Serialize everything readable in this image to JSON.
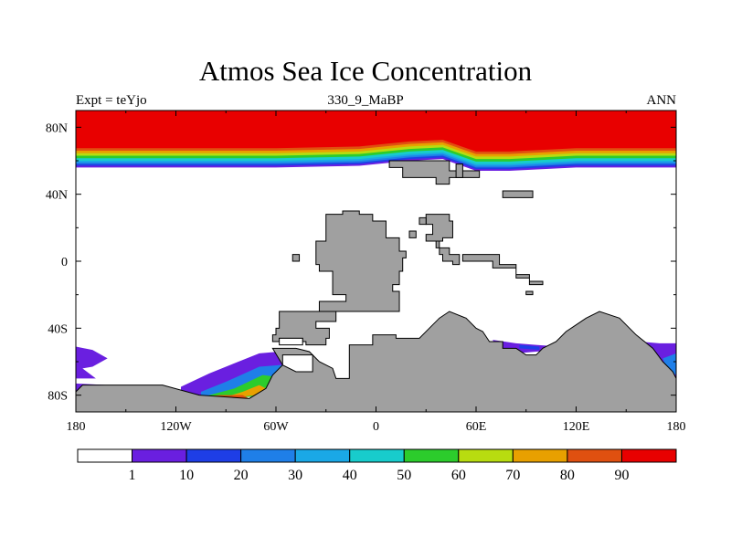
{
  "chart_data": {
    "type": "heatmap",
    "title": "Atmos Sea Ice Concentration",
    "subtitle_left": "Expt = teYjo",
    "subtitle_center": "330_9_MaBP",
    "subtitle_right": "ANN",
    "x_range": [
      -180,
      180
    ],
    "y_range": [
      -90,
      90
    ],
    "x_ticks": [
      {
        "value": -180,
        "label": "180"
      },
      {
        "value": -120,
        "label": "120W"
      },
      {
        "value": -60,
        "label": "60W"
      },
      {
        "value": 0,
        "label": "0"
      },
      {
        "value": 60,
        "label": "60E"
      },
      {
        "value": 120,
        "label": "120E"
      },
      {
        "value": 180,
        "label": "180"
      }
    ],
    "y_ticks": [
      {
        "value": 80,
        "label": "80N"
      },
      {
        "value": 40,
        "label": "40N"
      },
      {
        "value": 0,
        "label": "0"
      },
      {
        "value": -40,
        "label": "40S"
      },
      {
        "value": -80,
        "label": "80S"
      }
    ],
    "colorbar": {
      "labels": [
        "1",
        "10",
        "20",
        "30",
        "40",
        "50",
        "60",
        "70",
        "80",
        "90"
      ],
      "colors": [
        "#ffffff",
        "#6a1fe0",
        "#1e3ee6",
        "#1f7fe8",
        "#1aa8e6",
        "#18cccc",
        "#2ccc2c",
        "#b8dc10",
        "#e8a000",
        "#e05010",
        "#e80000"
      ]
    },
    "land_color": "#a0a0a0",
    "north_ice_band": [
      {
        "lon": -180,
        "lat": 56
      },
      {
        "lon": -120,
        "lat": 56
      },
      {
        "lon": -60,
        "lat": 56
      },
      {
        "lon": -10,
        "lat": 57
      },
      {
        "lon": 20,
        "lat": 60
      },
      {
        "lon": 40,
        "lat": 61
      },
      {
        "lon": 60,
        "lat": 54
      },
      {
        "lon": 80,
        "lat": 54
      },
      {
        "lon": 120,
        "lat": 56
      },
      {
        "lon": 180,
        "lat": 56
      }
    ],
    "north_ice_levels": [
      {
        "value": 1,
        "offset_deg": 0
      },
      {
        "value": 10,
        "offset_deg": 1
      },
      {
        "value": 20,
        "offset_deg": 2
      },
      {
        "value": 30,
        "offset_deg": 3
      },
      {
        "value": 40,
        "offset_deg": 4
      },
      {
        "value": 50,
        "offset_deg": 5.5
      },
      {
        "value": 60,
        "offset_deg": 7
      },
      {
        "value": 70,
        "offset_deg": 8.5
      },
      {
        "value": 80,
        "offset_deg": 10
      },
      {
        "value": 90,
        "offset_deg": 11.5
      }
    ],
    "south_ice_patches": [
      {
        "value": 1,
        "points": [
          [
            -180,
            -51
          ],
          [
            -170,
            -53
          ],
          [
            -161,
            -58
          ],
          [
            -170,
            -63
          ],
          [
            -176,
            -64
          ],
          [
            -168,
            -70
          ],
          [
            -180,
            -70
          ]
        ]
      },
      {
        "value": 1,
        "points": [
          [
            -180,
            -73
          ],
          [
            -161,
            -74
          ],
          [
            -156,
            -76
          ],
          [
            -160,
            -78
          ],
          [
            -180,
            -78
          ]
        ]
      },
      {
        "value": 1,
        "points": [
          [
            -117,
            -75
          ],
          [
            -100,
            -67
          ],
          [
            -70,
            -55
          ],
          [
            -58,
            -54
          ],
          [
            -42,
            -58
          ],
          [
            -40,
            -66
          ],
          [
            -50,
            -72
          ],
          [
            -62,
            -76
          ],
          [
            -70,
            -80
          ],
          [
            -117,
            -83
          ]
        ]
      },
      {
        "value": 20,
        "points": [
          [
            -105,
            -78
          ],
          [
            -90,
            -72
          ],
          [
            -70,
            -63
          ],
          [
            -57,
            -62
          ],
          [
            -48,
            -66
          ],
          [
            -58,
            -74
          ],
          [
            -72,
            -80
          ],
          [
            -105,
            -82
          ]
        ]
      },
      {
        "value": 50,
        "points": [
          [
            -100,
            -80
          ],
          [
            -85,
            -76
          ],
          [
            -68,
            -68
          ],
          [
            -60,
            -69
          ],
          [
            -65,
            -76
          ],
          [
            -75,
            -81
          ],
          [
            -100,
            -82
          ]
        ]
      },
      {
        "value": 70,
        "points": [
          [
            -90,
            -81
          ],
          [
            -80,
            -78
          ],
          [
            -70,
            -74
          ],
          [
            -66,
            -76
          ],
          [
            -72,
            -80
          ],
          [
            -90,
            -82
          ]
        ]
      },
      {
        "value": 80,
        "points": [
          [
            -112,
            -82
          ],
          [
            -94,
            -80
          ],
          [
            -80,
            -80
          ],
          [
            -76,
            -82
          ],
          [
            -112,
            -83
          ]
        ]
      },
      {
        "value": 1,
        "points": [
          [
            70,
            -47
          ],
          [
            84,
            -49
          ],
          [
            96,
            -50
          ],
          [
            110,
            -51
          ],
          [
            110,
            -53
          ],
          [
            96,
            -54
          ],
          [
            84,
            -55
          ],
          [
            72,
            -52
          ]
        ]
      },
      {
        "value": 10,
        "points": [
          [
            86,
            -50
          ],
          [
            98,
            -51
          ],
          [
            98,
            -53
          ],
          [
            86,
            -52
          ]
        ]
      },
      {
        "value": 1,
        "points": [
          [
            158,
            -48
          ],
          [
            170,
            -49
          ],
          [
            180,
            -49
          ],
          [
            180,
            -80
          ],
          [
            174,
            -78
          ],
          [
            170,
            -70
          ],
          [
            166,
            -60
          ]
        ]
      },
      {
        "value": 20,
        "points": [
          [
            172,
            -58
          ],
          [
            180,
            -55
          ],
          [
            180,
            -68
          ],
          [
            174,
            -64
          ]
        ]
      }
    ],
    "land_polygons": [
      {
        "name": "north-continent",
        "points": [
          [
            8,
            60
          ],
          [
            44,
            60
          ],
          [
            44,
            54
          ],
          [
            62,
            54
          ],
          [
            62,
            50
          ],
          [
            44,
            50
          ],
          [
            44,
            46
          ],
          [
            36,
            46
          ],
          [
            36,
            50
          ],
          [
            16,
            50
          ],
          [
            16,
            56
          ],
          [
            8,
            56
          ]
        ]
      },
      {
        "name": "north-continent-east",
        "points": [
          [
            48,
            58
          ],
          [
            52,
            58
          ],
          [
            52,
            50
          ],
          [
            48,
            50
          ]
        ]
      },
      {
        "name": "east-island",
        "points": [
          [
            76,
            42
          ],
          [
            94,
            42
          ],
          [
            94,
            38
          ],
          [
            76,
            38
          ]
        ]
      },
      {
        "name": "central-continent",
        "points": [
          [
            -30,
            28
          ],
          [
            -20,
            28
          ],
          [
            -20,
            30
          ],
          [
            -10,
            30
          ],
          [
            -10,
            28
          ],
          [
            -2,
            28
          ],
          [
            -2,
            24
          ],
          [
            6,
            24
          ],
          [
            6,
            14
          ],
          [
            14,
            14
          ],
          [
            14,
            6
          ],
          [
            18,
            6
          ],
          [
            18,
            2
          ],
          [
            16,
            2
          ],
          [
            16,
            -6
          ],
          [
            14,
            -6
          ],
          [
            14,
            -14
          ],
          [
            10,
            -14
          ],
          [
            10,
            -18
          ],
          [
            14,
            -18
          ],
          [
            14,
            -30
          ],
          [
            -58,
            -30
          ],
          [
            -58,
            -40
          ],
          [
            -60,
            -40
          ],
          [
            -60,
            -44
          ],
          [
            -62,
            -44
          ],
          [
            -62,
            -48
          ],
          [
            -58,
            -48
          ],
          [
            -58,
            -46
          ],
          [
            -44,
            -46
          ],
          [
            -44,
            -48
          ],
          [
            -42,
            -48
          ],
          [
            -42,
            -50
          ],
          [
            -30,
            -50
          ],
          [
            -30,
            -46
          ],
          [
            -28,
            -46
          ],
          [
            -28,
            -40
          ],
          [
            -36,
            -40
          ],
          [
            -36,
            -36
          ],
          [
            -24,
            -36
          ],
          [
            -24,
            -30
          ],
          [
            -34,
            -30
          ],
          [
            -34,
            -24
          ],
          [
            -18,
            -24
          ],
          [
            -18,
            -20
          ],
          [
            -26,
            -20
          ],
          [
            -26,
            -6
          ],
          [
            -34,
            -6
          ],
          [
            -34,
            -2
          ],
          [
            -36,
            -2
          ],
          [
            -36,
            12
          ],
          [
            -30,
            12
          ]
        ]
      },
      {
        "name": "south-continent",
        "points": [
          [
            -62,
            -52
          ],
          [
            -48,
            -52
          ],
          [
            -40,
            -54
          ],
          [
            -34,
            -60
          ],
          [
            -26,
            -64
          ],
          [
            -24,
            -70
          ],
          [
            -16,
            -70
          ],
          [
            -16,
            -50
          ],
          [
            -2,
            -50
          ],
          [
            -2,
            -44
          ],
          [
            12,
            -44
          ],
          [
            12,
            -46
          ],
          [
            26,
            -46
          ],
          [
            32,
            -40
          ],
          [
            38,
            -34
          ],
          [
            44,
            -30
          ],
          [
            54,
            -34
          ],
          [
            60,
            -40
          ],
          [
            64,
            -42
          ],
          [
            68,
            -48
          ],
          [
            76,
            -48
          ],
          [
            76,
            -52
          ],
          [
            84,
            -52
          ],
          [
            90,
            -56
          ],
          [
            96,
            -56
          ],
          [
            100,
            -52
          ],
          [
            108,
            -48
          ],
          [
            114,
            -42
          ],
          [
            120,
            -38
          ],
          [
            126,
            -34
          ],
          [
            134,
            -30
          ],
          [
            146,
            -34
          ],
          [
            156,
            -44
          ],
          [
            166,
            -52
          ],
          [
            172,
            -60
          ],
          [
            178,
            -66
          ],
          [
            180,
            -70
          ],
          [
            180,
            -90
          ],
          [
            -180,
            -90
          ],
          [
            -180,
            -78
          ],
          [
            -176,
            -74
          ],
          [
            -142,
            -74
          ],
          [
            -128,
            -74
          ],
          [
            -106,
            -80
          ],
          [
            -76,
            -82
          ],
          [
            -66,
            -76
          ],
          [
            -62,
            -68
          ],
          [
            -56,
            -62
          ]
        ]
      },
      {
        "name": "east-archipelago-1",
        "points": [
          [
            30,
            28
          ],
          [
            44,
            28
          ],
          [
            44,
            24
          ],
          [
            46,
            24
          ],
          [
            46,
            14
          ],
          [
            40,
            14
          ],
          [
            40,
            12
          ],
          [
            30,
            12
          ],
          [
            30,
            16
          ],
          [
            34,
            16
          ],
          [
            34,
            22
          ],
          [
            30,
            22
          ]
        ]
      },
      {
        "name": "east-archipelago-2",
        "points": [
          [
            52,
            4
          ],
          [
            74,
            4
          ],
          [
            74,
            -2
          ],
          [
            84,
            -2
          ],
          [
            84,
            -8
          ],
          [
            92,
            -8
          ],
          [
            92,
            -12
          ],
          [
            100,
            -12
          ],
          [
            100,
            -14
          ],
          [
            92,
            -14
          ],
          [
            92,
            -10
          ],
          [
            84,
            -10
          ],
          [
            84,
            -4
          ],
          [
            70,
            -4
          ],
          [
            70,
            0
          ],
          [
            52,
            0
          ]
        ]
      },
      {
        "name": "east-archipelago-3",
        "points": [
          [
            38,
            8
          ],
          [
            44,
            8
          ],
          [
            44,
            4
          ],
          [
            50,
            4
          ],
          [
            50,
            -2
          ],
          [
            46,
            -2
          ],
          [
            46,
            0
          ],
          [
            40,
            0
          ],
          [
            40,
            4
          ],
          [
            38,
            4
          ]
        ]
      },
      {
        "name": "small-island-1",
        "points": [
          [
            26,
            26
          ],
          [
            30,
            26
          ],
          [
            30,
            22
          ],
          [
            26,
            22
          ]
        ]
      },
      {
        "name": "small-island-2",
        "points": [
          [
            20,
            18
          ],
          [
            24,
            18
          ],
          [
            24,
            14
          ],
          [
            20,
            14
          ]
        ]
      },
      {
        "name": "small-island-3",
        "points": [
          [
            36,
            12
          ],
          [
            38,
            12
          ],
          [
            38,
            8
          ],
          [
            36,
            8
          ]
        ]
      },
      {
        "name": "small-island-4",
        "points": [
          [
            90,
            -18
          ],
          [
            94,
            -18
          ],
          [
            94,
            -20
          ],
          [
            90,
            -20
          ]
        ]
      },
      {
        "name": "small-island-5",
        "points": [
          [
            -50,
            4
          ],
          [
            -46,
            4
          ],
          [
            -46,
            0
          ],
          [
            -50,
            0
          ]
        ]
      }
    ],
    "land_holes": [
      {
        "points": [
          [
            -58,
            -46
          ],
          [
            -44,
            -46
          ],
          [
            -44,
            -50
          ],
          [
            -58,
            -50
          ]
        ]
      },
      {
        "points": [
          [
            -56,
            -56
          ],
          [
            -38,
            -56
          ],
          [
            -38,
            -66
          ],
          [
            -48,
            -66
          ],
          [
            -56,
            -62
          ]
        ]
      }
    ]
  }
}
